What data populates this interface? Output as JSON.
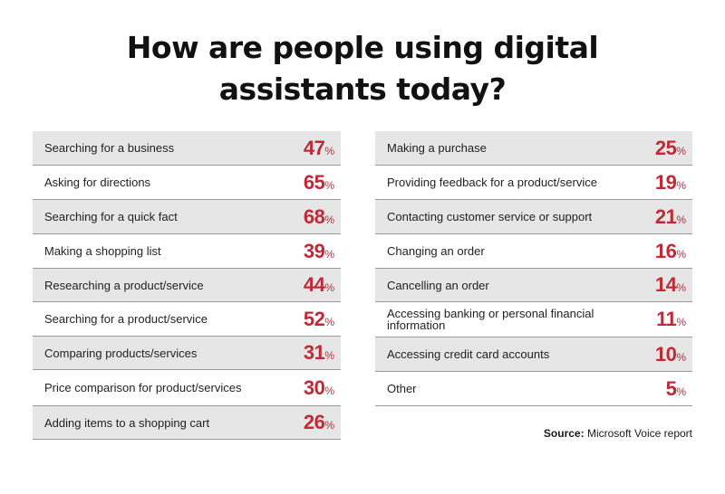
{
  "title_line1": "How are people using digital",
  "title_line2": "assistants today?",
  "source_label": "Source:",
  "source_text": "Microsoft Voice report",
  "percent_symbol": "%",
  "accent_color": "#c02a37",
  "shade_color": "#e6e6e6",
  "chart_data": {
    "type": "table",
    "title": "How are people using digital assistants today?",
    "left": [
      {
        "label": "Searching for a business",
        "value": 47
      },
      {
        "label": "Asking for directions",
        "value": 65
      },
      {
        "label": "Searching for a quick fact",
        "value": 68
      },
      {
        "label": "Making a shopping list",
        "value": 39
      },
      {
        "label": "Researching a product/service",
        "value": 44
      },
      {
        "label": "Searching for a product/service",
        "value": 52
      },
      {
        "label": "Comparing products/services",
        "value": 31
      },
      {
        "label": "Price comparison for product/services",
        "value": 30
      },
      {
        "label": "Adding items to a shopping cart",
        "value": 26
      }
    ],
    "right": [
      {
        "label": "Making a purchase",
        "value": 25
      },
      {
        "label": "Providing feedback for a product/service",
        "value": 19
      },
      {
        "label": "Contacting customer service or support",
        "value": 21
      },
      {
        "label": "Changing an order",
        "value": 16
      },
      {
        "label": "Cancelling an order",
        "value": 14
      },
      {
        "label": "Accessing banking or personal financial information",
        "value": 11
      },
      {
        "label": "Accessing credit card accounts",
        "value": 10
      },
      {
        "label": "Other",
        "value": 5
      }
    ]
  }
}
